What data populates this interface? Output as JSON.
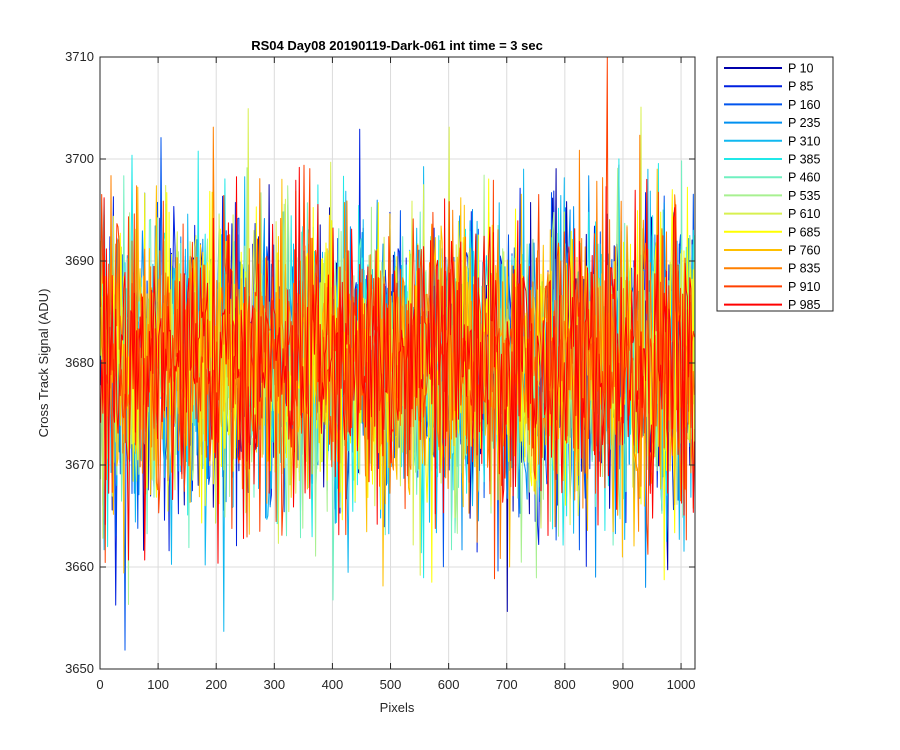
{
  "chart_data": {
    "type": "line",
    "title": "RS04 Day08 20190119-Dark-061 int time = 3 sec",
    "xlabel": "Pixels",
    "ylabel": "Cross Track Signal (ADU)",
    "xlim": [
      0,
      1024
    ],
    "ylim": [
      3650,
      3710
    ],
    "xticks": [
      0,
      100,
      200,
      300,
      400,
      500,
      600,
      700,
      800,
      900,
      1000
    ],
    "yticks": [
      3650,
      3660,
      3670,
      3680,
      3690,
      3700,
      3710
    ],
    "grid": true,
    "legend_position": "outside-right",
    "x_range": [
      1,
      1024
    ],
    "series_approx": "noisy dark signal, mean approx 3680 ADU, std approx 7 ADU, min approx 3650, max approx 3710",
    "series": [
      {
        "name": "P 10",
        "color": "#0000aa"
      },
      {
        "name": "P 85",
        "color": "#0020e0"
      },
      {
        "name": "P 160",
        "color": "#0055ee"
      },
      {
        "name": "P 235",
        "color": "#0090f0"
      },
      {
        "name": "P 310",
        "color": "#10b8f0"
      },
      {
        "name": "P 385",
        "color": "#20e8e8"
      },
      {
        "name": "P 460",
        "color": "#70f0c0"
      },
      {
        "name": "P 535",
        "color": "#a8f090"
      },
      {
        "name": "P 610",
        "color": "#d8f050"
      },
      {
        "name": "P 685",
        "color": "#ffff00"
      },
      {
        "name": "P 760",
        "color": "#ffc000"
      },
      {
        "name": "P 835",
        "color": "#ff8000"
      },
      {
        "name": "P 910",
        "color": "#ff4000"
      },
      {
        "name": "P 985",
        "color": "#ff0000"
      }
    ]
  }
}
